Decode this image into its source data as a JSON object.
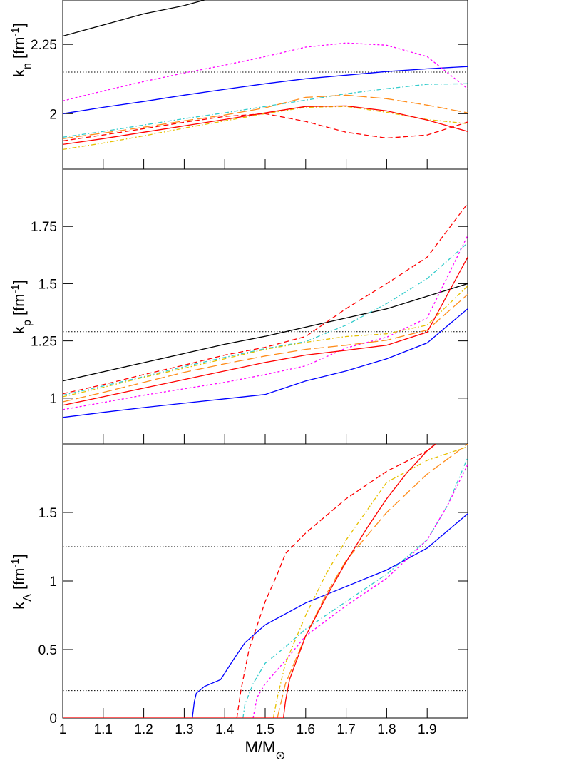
{
  "chart_data": [
    {
      "type": "line",
      "ylabel": {
        "base": "k",
        "sub": "n",
        "unit": "[fm",
        "sup": "-1",
        "close": "]"
      },
      "xlim": [
        1,
        2
      ],
      "ylim": [
        1.8,
        2.41
      ],
      "xticks": [
        1,
        1.1,
        1.2,
        1.3,
        1.4,
        1.5,
        1.6,
        1.7,
        1.8,
        1.9
      ],
      "show_xtick_labels": false,
      "yticks": [
        2,
        2.25
      ],
      "reference_lines": [
        2.15
      ],
      "x": [
        1,
        1.1,
        1.2,
        1.3,
        1.4,
        1.5,
        1.6,
        1.7,
        1.8,
        1.9,
        2
      ],
      "series": [
        {
          "color": "#000000",
          "dash": "solid",
          "values": [
            2.28,
            2.32,
            2.36,
            2.39,
            2.43,
            null,
            null,
            null,
            null,
            null,
            null
          ]
        },
        {
          "color": "#0000ff",
          "dash": "solid",
          "values": [
            2.0,
            2.023,
            2.044,
            2.067,
            2.088,
            2.108,
            2.126,
            2.139,
            2.152,
            2.162,
            2.17
          ]
        },
        {
          "color": "#ff00ff",
          "dash": "dotted",
          "values": [
            2.046,
            2.082,
            2.116,
            2.147,
            2.175,
            2.206,
            2.24,
            2.255,
            2.247,
            2.206,
            2.09
          ]
        },
        {
          "color": "#33cccc",
          "dash": "dashdot",
          "values": [
            1.915,
            1.936,
            1.959,
            1.982,
            2.003,
            2.026,
            2.049,
            2.072,
            2.09,
            2.106,
            2.108
          ]
        },
        {
          "color": "#ff8c1a",
          "dash": "longdash",
          "values": [
            1.91,
            1.93,
            1.951,
            1.974,
            1.995,
            2.021,
            2.059,
            2.067,
            2.054,
            2.031,
            2.003
          ]
        },
        {
          "color": "#e6c000",
          "dash": "dashdot",
          "values": [
            1.871,
            1.894,
            1.92,
            1.948,
            1.974,
            2.0,
            2.023,
            2.026,
            2.005,
            1.979,
            1.964
          ]
        },
        {
          "color": "#ff0000",
          "dash": "solid",
          "values": [
            1.889,
            1.91,
            1.933,
            1.956,
            1.979,
            2.003,
            2.026,
            2.028,
            2.01,
            1.977,
            1.936
          ]
        },
        {
          "color": "#ff0000",
          "dash": "dashed",
          "values": [
            1.902,
            1.923,
            1.946,
            1.969,
            1.99,
            2.0,
            1.972,
            1.933,
            1.912,
            1.923,
            1.97
          ]
        }
      ]
    },
    {
      "type": "line",
      "ylabel": {
        "base": "k",
        "sub": "p",
        "unit": "[fm",
        "sup": "-1",
        "close": "]"
      },
      "xlim": [
        1,
        2
      ],
      "ylim": [
        0.8,
        2.0
      ],
      "xticks": [
        1,
        1.1,
        1.2,
        1.3,
        1.4,
        1.5,
        1.6,
        1.7,
        1.8,
        1.9
      ],
      "show_xtick_labels": false,
      "yticks": [
        1,
        1.25,
        1.5,
        1.75
      ],
      "reference_lines": [
        1.29
      ],
      "x": [
        1,
        1.1,
        1.2,
        1.3,
        1.4,
        1.5,
        1.6,
        1.7,
        1.8,
        1.9,
        2
      ],
      "series": [
        {
          "color": "#000000",
          "dash": "solid",
          "values": [
            1.075,
            1.115,
            1.155,
            1.195,
            1.235,
            1.27,
            1.31,
            1.35,
            1.39,
            1.445,
            1.5
          ]
        },
        {
          "color": "#0000ff",
          "dash": "solid",
          "values": [
            0.916,
            0.938,
            0.959,
            0.978,
            0.997,
            1.016,
            1.075,
            1.119,
            1.172,
            1.241,
            1.39
          ]
        },
        {
          "color": "#ff00ff",
          "dash": "dotted",
          "values": [
            0.95,
            0.981,
            1.013,
            1.041,
            1.069,
            1.103,
            1.141,
            1.219,
            1.266,
            1.35,
            1.71
          ]
        },
        {
          "color": "#33cccc",
          "dash": "dashdot",
          "values": [
            1.013,
            1.053,
            1.094,
            1.138,
            1.178,
            1.216,
            1.247,
            1.319,
            1.413,
            1.522,
            1.678
          ]
        },
        {
          "color": "#ff8c1a",
          "dash": "longdash",
          "values": [
            0.984,
            1.025,
            1.069,
            1.113,
            1.15,
            1.184,
            1.213,
            1.231,
            1.253,
            1.297,
            1.453
          ]
        },
        {
          "color": "#e6c000",
          "dash": "dashdot",
          "values": [
            1.006,
            1.047,
            1.091,
            1.131,
            1.172,
            1.213,
            1.244,
            1.269,
            1.281,
            1.319,
            1.49
          ]
        },
        {
          "color": "#ff0000",
          "dash": "solid",
          "values": [
            0.969,
            1.006,
            1.044,
            1.081,
            1.119,
            1.156,
            1.188,
            1.209,
            1.231,
            1.288,
            1.616
          ]
        },
        {
          "color": "#ff0000",
          "dash": "dashed",
          "values": [
            1.019,
            1.059,
            1.103,
            1.144,
            1.188,
            1.222,
            1.269,
            1.391,
            1.5,
            1.616,
            1.85
          ]
        }
      ]
    },
    {
      "type": "line",
      "ylabel": {
        "base": "k",
        "sub": "Λ",
        "unit": "[fm",
        "sup": "-1",
        "close": "]"
      },
      "xlabel": {
        "base": "M/M",
        "sub": "⊙"
      },
      "xlim": [
        1,
        2
      ],
      "ylim": [
        0,
        2
      ],
      "xticks": [
        1,
        1.1,
        1.2,
        1.3,
        1.4,
        1.5,
        1.6,
        1.7,
        1.8,
        1.9
      ],
      "show_xtick_labels": true,
      "yticks": [
        0,
        0.5,
        1,
        1.5
      ],
      "reference_lines": [
        1.25,
        0.2
      ],
      "series": [
        {
          "color": "#0000ff",
          "dash": "solid",
          "x": [
            1.32,
            1.325,
            1.33,
            1.35,
            1.39,
            1.42,
            1.45,
            1.5,
            1.6,
            1.7,
            1.8,
            1.9,
            2
          ],
          "values": [
            0,
            0.12,
            0.18,
            0.23,
            0.28,
            0.42,
            0.55,
            0.68,
            0.84,
            0.96,
            1.08,
            1.24,
            1.49
          ]
        },
        {
          "color": "#ff0000",
          "dash": "dashed",
          "x": [
            1.43,
            1.44,
            1.46,
            1.5,
            1.53,
            1.55,
            1.6,
            1.7,
            1.8,
            1.9,
            1.92
          ],
          "values": [
            0,
            0.2,
            0.5,
            0.85,
            1.05,
            1.2,
            1.35,
            1.6,
            1.8,
            1.95,
            2.0
          ]
        },
        {
          "color": "#33cccc",
          "dash": "dashdot",
          "x": [
            1.445,
            1.45,
            1.47,
            1.5,
            1.55,
            1.6,
            1.7,
            1.8,
            1.9,
            1.95,
            2
          ],
          "values": [
            0,
            0.1,
            0.25,
            0.4,
            0.52,
            0.65,
            0.85,
            1.05,
            1.3,
            1.55,
            1.9
          ]
        },
        {
          "color": "#ff00ff",
          "dash": "dotted",
          "x": [
            1.47,
            1.48,
            1.5,
            1.55,
            1.6,
            1.7,
            1.8,
            1.9,
            1.95,
            2
          ],
          "values": [
            0,
            0.15,
            0.25,
            0.42,
            0.6,
            0.82,
            1.02,
            1.3,
            1.55,
            1.85
          ]
        },
        {
          "color": "#e6c000",
          "dash": "dashdot",
          "x": [
            1.52,
            1.53,
            1.55,
            1.6,
            1.65,
            1.7,
            1.8,
            1.85,
            1.9,
            2
          ],
          "values": [
            0,
            0.15,
            0.4,
            0.75,
            1.05,
            1.3,
            1.72,
            1.8,
            1.88,
            1.98
          ]
        },
        {
          "color": "#ff8c1a",
          "dash": "longdash",
          "x": [
            1.53,
            1.55,
            1.6,
            1.65,
            1.7,
            1.8,
            1.9,
            2
          ],
          "values": [
            0,
            0.25,
            0.6,
            0.9,
            1.15,
            1.5,
            1.78,
            2.0
          ]
        },
        {
          "color": "#ff0000",
          "dash": "solid",
          "x": [
            1,
            1.545,
            1.55,
            1.56,
            1.6,
            1.65,
            1.7,
            1.75,
            1.8,
            1.85,
            1.9,
            1.93
          ],
          "values": [
            0,
            0,
            0.12,
            0.28,
            0.6,
            0.88,
            1.14,
            1.38,
            1.6,
            1.79,
            1.95,
            2.02
          ]
        }
      ]
    }
  ]
}
